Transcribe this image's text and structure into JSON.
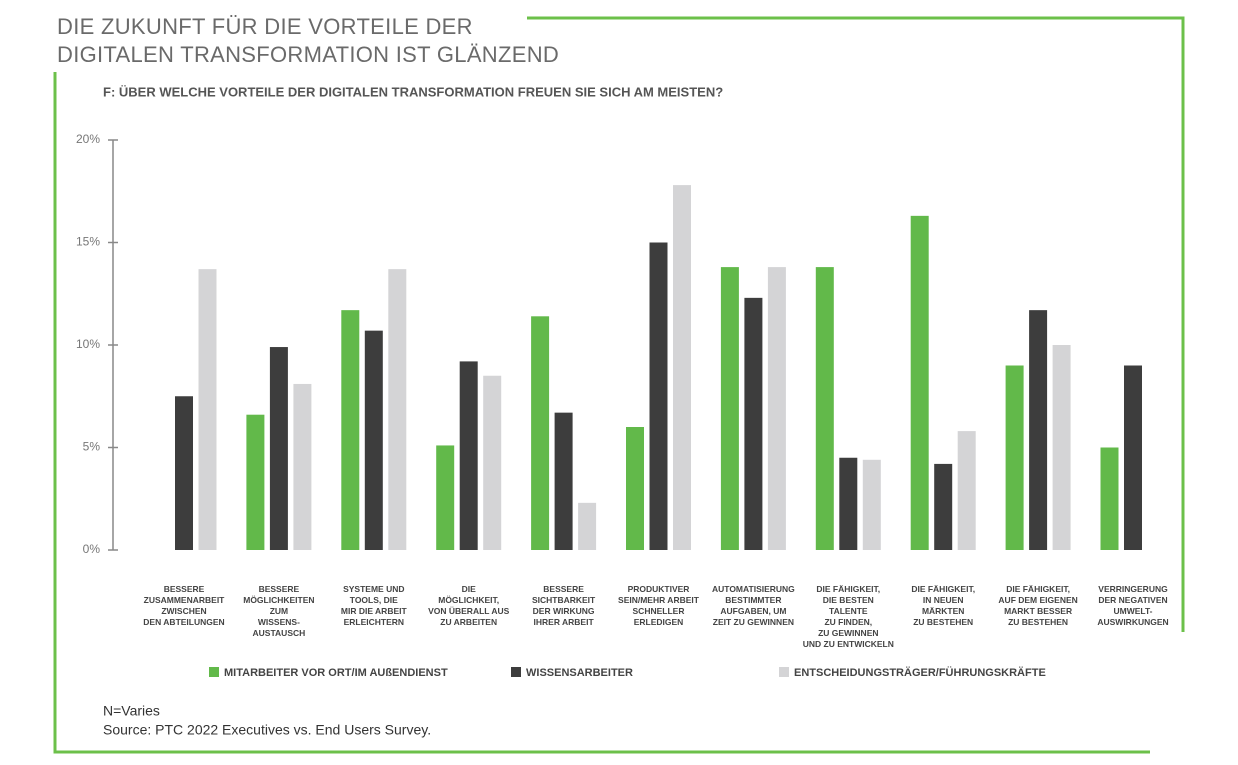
{
  "chart_data": {
    "type": "bar",
    "title": [
      "DIE ZUKUNFT FÜR DIE VORTEILE DER",
      "DIGITALEN TRANSFORMATION IST GLÄNZEND"
    ],
    "subtitle": "F: ÜBER WELCHE VORTEILE DER DIGITALEN TRANSFORMATION FREUEN SIE SICH AM MEISTEN?",
    "categories": [
      [
        "BESSERE",
        "ZUSAMMENARBEIT",
        "ZWISCHEN",
        "DEN ABTEILUNGEN"
      ],
      [
        "BESSERE",
        "MÖGLICHKEITEN",
        "ZUM",
        "WISSENS-",
        "AUSTAUSCH"
      ],
      [
        "SYSTEME UND",
        "TOOLS, DIE",
        "MIR DIE ARBEIT",
        "ERLEICHTERN"
      ],
      [
        "DIE",
        "MÖGLICHKEIT,",
        "VON ÜBERALL AUS",
        "ZU ARBEITEN"
      ],
      [
        "BESSERE",
        "SICHTBARKEIT",
        "DER WIRKUNG",
        "IHRER ARBEIT"
      ],
      [
        "PRODUKTIVER",
        "SEIN/MEHR ARBEIT",
        "SCHNELLER",
        "ERLEDIGEN"
      ],
      [
        "AUTOMATISIERUNG",
        "BESTIMMTER",
        "AUFGABEN, UM",
        "ZEIT ZU GEWINNEN"
      ],
      [
        "DIE FÄHIGKEIT,",
        "DIE BESTEN",
        "TALENTE",
        "ZU FINDEN,",
        "ZU GEWINNEN",
        "UND ZU ENTWICKELN"
      ],
      [
        "DIE FÄHIGKEIT,",
        "IN NEUEN",
        "MÄRKTEN",
        "ZU BESTEHEN"
      ],
      [
        "DIE FÄHIGKEIT,",
        "AUF DEM EIGENEN",
        "MARKT BESSER",
        "ZU BESTEHEN"
      ],
      [
        "VERRINGERUNG",
        "DER NEGATIVEN",
        "UMWELT-",
        "AUSWIRKUNGEN"
      ]
    ],
    "series": [
      {
        "name": "MITARBEITER VOR ORT/IM AUßENDIENST",
        "color": "#62b94a",
        "values": [
          null,
          6.6,
          11.7,
          5.1,
          11.4,
          6.0,
          13.8,
          13.8,
          16.3,
          9.0,
          5.0
        ]
      },
      {
        "name": "WISSENSARBEITER",
        "color": "#3d3d3d",
        "values": [
          7.5,
          9.9,
          10.7,
          9.2,
          6.7,
          15.0,
          12.3,
          4.5,
          4.2,
          11.7,
          9.0
        ]
      },
      {
        "name": "ENTSCHEIDUNGSTRÄGER/FÜHRUNGSKRÄFTE",
        "color": "#d4d4d6",
        "values": [
          13.7,
          8.1,
          13.7,
          8.5,
          2.3,
          17.8,
          13.8,
          4.4,
          5.8,
          10.0,
          null
        ]
      }
    ],
    "ylim": [
      0,
      20
    ],
    "yticks": [
      {
        "value": 0,
        "label": "0%"
      },
      {
        "value": 5,
        "label": "5%"
      },
      {
        "value": 10,
        "label": "10%"
      },
      {
        "value": 15,
        "label": "15%"
      },
      {
        "value": 20,
        "label": "20%"
      }
    ],
    "notes": [
      "N=Varies",
      "Source: PTC 2022 Executives vs. End Users Survey."
    ]
  }
}
